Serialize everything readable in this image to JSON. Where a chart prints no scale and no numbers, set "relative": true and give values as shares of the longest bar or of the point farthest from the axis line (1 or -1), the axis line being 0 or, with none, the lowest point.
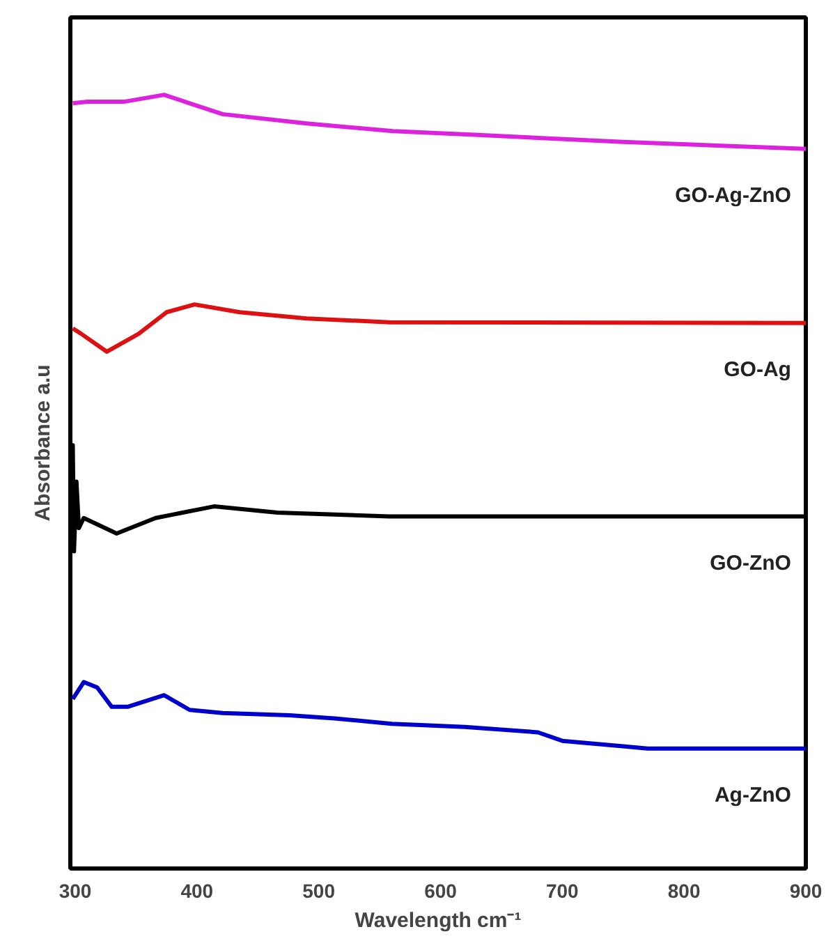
{
  "chart_data": {
    "type": "line",
    "relative": true,
    "xlabel": "Wavelength cm⁻¹",
    "ylabel": "Absorbance a.u",
    "xlim": [
      296,
      900
    ],
    "xticks": [
      300,
      400,
      500,
      600,
      700,
      800,
      900
    ],
    "grid": false,
    "marker": "none",
    "line_style": "solid",
    "series": [
      {
        "name": "GO-Ag-ZnO",
        "color": "#dd22dd",
        "x": [
          298,
          310,
          340,
          373,
          394,
          421,
          490,
          561,
          631,
          750,
          900
        ],
        "values": [
          0.989,
          0.991,
          0.991,
          1.0,
          0.989,
          0.975,
          0.963,
          0.953,
          0.948,
          0.939,
          0.93
        ]
      },
      {
        "name": "GO-Ag",
        "color": "#dd1111",
        "x": [
          298,
          305,
          326,
          352,
          375,
          398,
          435,
          490,
          558,
          900
        ],
        "values": [
          0.698,
          0.691,
          0.668,
          0.691,
          0.719,
          0.729,
          0.719,
          0.711,
          0.706,
          0.705
        ]
      },
      {
        "name": "GO-ZnO",
        "color": "#000000",
        "x": [
          297,
          298,
          299,
          301,
          303,
          307,
          334,
          366,
          414,
          466,
          558,
          900
        ],
        "values": [
          0.5,
          0.547,
          0.41,
          0.5,
          0.44,
          0.453,
          0.433,
          0.453,
          0.468,
          0.46,
          0.455,
          0.455
        ]
      },
      {
        "name": "Ag-ZnO",
        "color": "#0000cc",
        "x": [
          298,
          307,
          318,
          330,
          343,
          373,
          394,
          421,
          476,
          513,
          560,
          620,
          680,
          700,
          750,
          770,
          900
        ],
        "values": [
          0.219,
          0.241,
          0.234,
          0.209,
          0.209,
          0.224,
          0.205,
          0.201,
          0.198,
          0.194,
          0.187,
          0.183,
          0.176,
          0.165,
          0.158,
          0.155,
          0.155
        ]
      }
    ]
  }
}
